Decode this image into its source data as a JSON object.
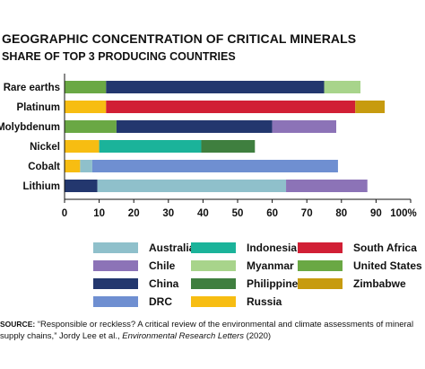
{
  "header": {
    "title": "GEOGRAPHIC CONCENTRATION OF CRITICAL MINERALS",
    "subtitle": "SHARE OF TOP 3 PRODUCING COUNTRIES"
  },
  "colors": {
    "Australia": "#8fc0cb",
    "Chile": "#8c73b7",
    "China": "#23376e",
    "DRC": "#6f8fd1",
    "Indonesia": "#1bb39a",
    "Myanmar": "#a8d48b",
    "Philippines": "#3f7f3f",
    "Russia": "#f7bd12",
    "South Africa": "#d11f35",
    "United States": "#6aa844",
    "Zimbabwe": "#c79b0f"
  },
  "chart_data": {
    "type": "bar",
    "orientation": "horizontal",
    "stacked": true,
    "title": "GEOGRAPHIC CONCENTRATION OF CRITICAL MINERALS",
    "subtitle": "SHARE OF TOP 3 PRODUCING COUNTRIES",
    "xlim": [
      0,
      100
    ],
    "x_ticks": [
      "0",
      "10",
      "20",
      "30",
      "40",
      "50",
      "60",
      "70",
      "80",
      "90",
      "100%"
    ],
    "grid": false,
    "categories": [
      {
        "name": "Rare earths",
        "segments": [
          {
            "country": "United States",
            "value": 12
          },
          {
            "country": "China",
            "value": 63
          },
          {
            "country": "Myanmar",
            "value": 10.5
          }
        ]
      },
      {
        "name": "Platinum",
        "segments": [
          {
            "country": "Russia",
            "value": 12
          },
          {
            "country": "South Africa",
            "value": 72
          },
          {
            "country": "Zimbabwe",
            "value": 8.5
          }
        ]
      },
      {
        "name": "Molybdenum",
        "segments": [
          {
            "country": "United States",
            "value": 15
          },
          {
            "country": "China",
            "value": 45
          },
          {
            "country": "Chile",
            "value": 18.5
          }
        ]
      },
      {
        "name": "Nickel",
        "segments": [
          {
            "country": "Russia",
            "value": 10
          },
          {
            "country": "Indonesia",
            "value": 29.5
          },
          {
            "country": "Philippines",
            "value": 15.5
          }
        ]
      },
      {
        "name": "Cobalt",
        "segments": [
          {
            "country": "Russia",
            "value": 4.5
          },
          {
            "country": "Australia",
            "value": 3.5
          },
          {
            "country": "DRC",
            "value": 71
          }
        ]
      },
      {
        "name": "Lithium",
        "segments": [
          {
            "country": "China",
            "value": 9.5
          },
          {
            "country": "Australia",
            "value": 54.5
          },
          {
            "country": "Chile",
            "value": 23.5
          }
        ]
      }
    ],
    "legend": [
      "Australia",
      "Chile",
      "China",
      "DRC",
      "Indonesia",
      "Myanmar",
      "Philippines",
      "Russia",
      "South Africa",
      "United States",
      "Zimbabwe"
    ],
    "legend_placement": "bottom"
  },
  "source": {
    "label": "SOURCE:",
    "text_before": " “Responsible or reckless? A critical review of the environmental and climate assessments of mineral supply chains,” Jordy Lee et al., ",
    "journal": "Environmental Research Letters",
    "text_after": " (2020)"
  }
}
